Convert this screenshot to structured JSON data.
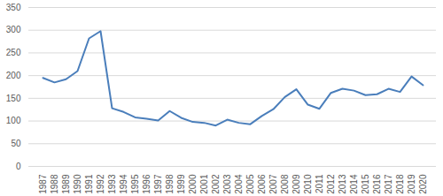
{
  "chart_data": {
    "type": "line",
    "categories": [
      "1987",
      "1988",
      "1989",
      "1990",
      "1991",
      "1992",
      "1993",
      "1994",
      "1995",
      "1996",
      "1997",
      "1998",
      "1999",
      "2000",
      "2001",
      "2002",
      "2003",
      "2004",
      "2005",
      "2006",
      "2007",
      "2008",
      "2009",
      "2010",
      "2011",
      "2012",
      "2013",
      "2014",
      "2015",
      "2016",
      "2017",
      "2018",
      "2019",
      "2020"
    ],
    "values": [
      195,
      185,
      192,
      210,
      282,
      298,
      128,
      120,
      108,
      105,
      101,
      122,
      107,
      98,
      96,
      90,
      103,
      96,
      93,
      111,
      126,
      153,
      170,
      136,
      127,
      162,
      171,
      167,
      157,
      159,
      171,
      164,
      198,
      179
    ],
    "color": "#4a7ebb",
    "ylim": [
      0,
      350
    ],
    "yticks": [
      0,
      50,
      100,
      150,
      200,
      250,
      300,
      350
    ],
    "grid": true
  }
}
